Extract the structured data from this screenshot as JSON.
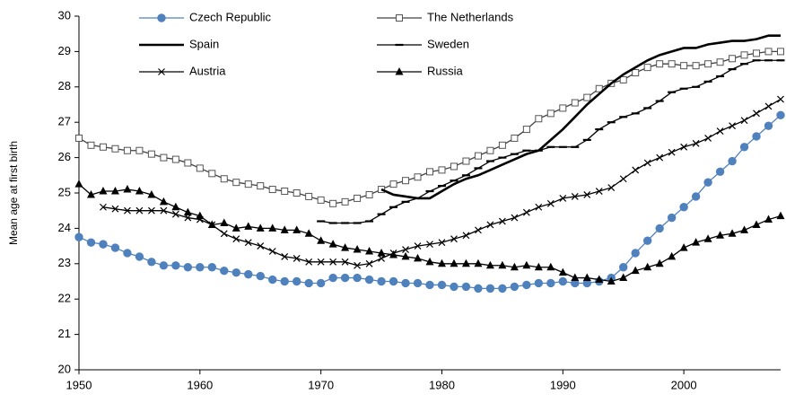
{
  "chart_data": {
    "type": "line",
    "y_label": "Mean age at first birth",
    "x": [
      1950,
      1951,
      1952,
      1953,
      1954,
      1955,
      1956,
      1957,
      1958,
      1959,
      1960,
      1961,
      1962,
      1963,
      1964,
      1965,
      1966,
      1967,
      1968,
      1969,
      1970,
      1971,
      1972,
      1973,
      1974,
      1975,
      1976,
      1977,
      1978,
      1979,
      1980,
      1981,
      1982,
      1983,
      1984,
      1985,
      1986,
      1987,
      1988,
      1989,
      1990,
      1991,
      1992,
      1993,
      1994,
      1995,
      1996,
      1997,
      1998,
      1999,
      2000,
      2001,
      2002,
      2003,
      2004,
      2005,
      2006,
      2007,
      2008
    ],
    "xlim": [
      1950,
      2008
    ],
    "xticks": [
      1950,
      1960,
      1970,
      1980,
      1990,
      2000
    ],
    "ylim": [
      20,
      30
    ],
    "yticks": [
      20,
      21,
      22,
      23,
      24,
      25,
      26,
      27,
      28,
      29,
      30
    ],
    "series": [
      {
        "name": "Czech Republic",
        "color": "#4f81bd",
        "marker": "circle",
        "values": [
          23.75,
          23.6,
          23.55,
          23.45,
          23.3,
          23.2,
          23.05,
          22.95,
          22.95,
          22.9,
          22.9,
          22.9,
          22.8,
          22.75,
          22.7,
          22.65,
          22.55,
          22.5,
          22.5,
          22.45,
          22.45,
          22.6,
          22.6,
          22.6,
          22.55,
          22.5,
          22.5,
          22.45,
          22.45,
          22.4,
          22.4,
          22.35,
          22.35,
          22.3,
          22.3,
          22.3,
          22.35,
          22.4,
          22.45,
          22.45,
          22.5,
          22.45,
          22.45,
          22.5,
          22.6,
          22.9,
          23.3,
          23.65,
          24.0,
          24.3,
          24.6,
          24.9,
          25.3,
          25.6,
          25.9,
          26.3,
          26.6,
          26.9,
          27.2
        ]
      },
      {
        "name": "The Netherlands",
        "color": "#404040",
        "marker": "square",
        "values": [
          26.55,
          26.35,
          26.3,
          26.25,
          26.2,
          26.2,
          26.1,
          26.0,
          25.95,
          25.85,
          25.7,
          25.55,
          25.4,
          25.3,
          25.25,
          25.2,
          25.1,
          25.05,
          25.0,
          24.9,
          24.8,
          24.7,
          24.75,
          24.85,
          24.95,
          25.1,
          25.25,
          25.35,
          25.45,
          25.6,
          25.65,
          25.75,
          25.9,
          26.05,
          26.2,
          26.35,
          26.55,
          26.8,
          27.1,
          27.25,
          27.4,
          27.55,
          27.7,
          27.95,
          28.1,
          28.2,
          28.4,
          28.55,
          28.65,
          28.65,
          28.6,
          28.6,
          28.65,
          28.7,
          28.8,
          28.9,
          28.95,
          29.0,
          29.0
        ]
      },
      {
        "name": "Spain",
        "color": "#000000",
        "marker": "none",
        "values": [
          null,
          null,
          null,
          null,
          null,
          null,
          null,
          null,
          null,
          null,
          null,
          null,
          null,
          null,
          null,
          null,
          null,
          null,
          null,
          null,
          null,
          null,
          null,
          null,
          null,
          25.1,
          24.95,
          24.9,
          24.85,
          24.85,
          25.05,
          25.25,
          25.4,
          25.5,
          25.65,
          25.8,
          25.95,
          26.1,
          26.2,
          26.5,
          26.8,
          27.15,
          27.5,
          27.8,
          28.1,
          28.35,
          28.55,
          28.75,
          28.9,
          29.0,
          29.1,
          29.1,
          29.2,
          29.25,
          29.3,
          29.3,
          29.35,
          29.45,
          29.45
        ]
      },
      {
        "name": "Sweden",
        "color": "#000000",
        "marker": "dash",
        "values": [
          null,
          null,
          null,
          null,
          null,
          null,
          null,
          null,
          null,
          null,
          null,
          null,
          null,
          null,
          null,
          null,
          null,
          null,
          null,
          null,
          24.2,
          24.15,
          24.15,
          24.15,
          24.2,
          24.4,
          24.6,
          24.75,
          24.85,
          25.05,
          25.2,
          25.35,
          25.5,
          25.7,
          25.9,
          26.0,
          26.1,
          26.2,
          26.2,
          26.3,
          26.3,
          26.3,
          26.5,
          26.8,
          27.0,
          27.15,
          27.25,
          27.4,
          27.6,
          27.85,
          27.95,
          28.0,
          28.15,
          28.3,
          28.5,
          28.65,
          28.75,
          28.75,
          28.75
        ]
      },
      {
        "name": "Austria",
        "color": "#000000",
        "marker": "cross",
        "values": [
          null,
          null,
          24.6,
          24.55,
          24.5,
          24.5,
          24.5,
          24.5,
          24.4,
          24.3,
          24.25,
          24.1,
          23.85,
          23.7,
          23.6,
          23.5,
          23.35,
          23.2,
          23.15,
          23.05,
          23.05,
          23.05,
          23.05,
          22.95,
          23.0,
          23.15,
          23.3,
          23.4,
          23.5,
          23.55,
          23.6,
          23.7,
          23.8,
          23.95,
          24.1,
          24.2,
          24.3,
          24.45,
          24.6,
          24.7,
          24.85,
          24.9,
          24.95,
          25.05,
          25.15,
          25.4,
          25.65,
          25.85,
          26.0,
          26.15,
          26.3,
          26.4,
          26.55,
          26.75,
          26.9,
          27.05,
          27.25,
          27.45,
          27.65
        ]
      },
      {
        "name": "Russia",
        "color": "#000000",
        "marker": "triangle",
        "values": [
          25.25,
          24.95,
          25.05,
          25.05,
          25.1,
          25.05,
          24.95,
          24.75,
          24.6,
          24.45,
          24.35,
          24.1,
          24.15,
          24.0,
          24.05,
          24.0,
          24.0,
          23.95,
          23.95,
          23.85,
          23.65,
          23.55,
          23.45,
          23.4,
          23.35,
          23.3,
          23.25,
          23.2,
          23.15,
          23.05,
          23.0,
          23.0,
          23.0,
          23.0,
          22.95,
          22.95,
          22.9,
          22.95,
          22.9,
          22.9,
          22.75,
          22.6,
          22.6,
          22.55,
          22.5,
          22.6,
          22.8,
          22.9,
          23.0,
          23.2,
          23.45,
          23.6,
          23.7,
          23.8,
          23.85,
          23.95,
          24.1,
          24.25,
          24.35
        ]
      }
    ]
  }
}
